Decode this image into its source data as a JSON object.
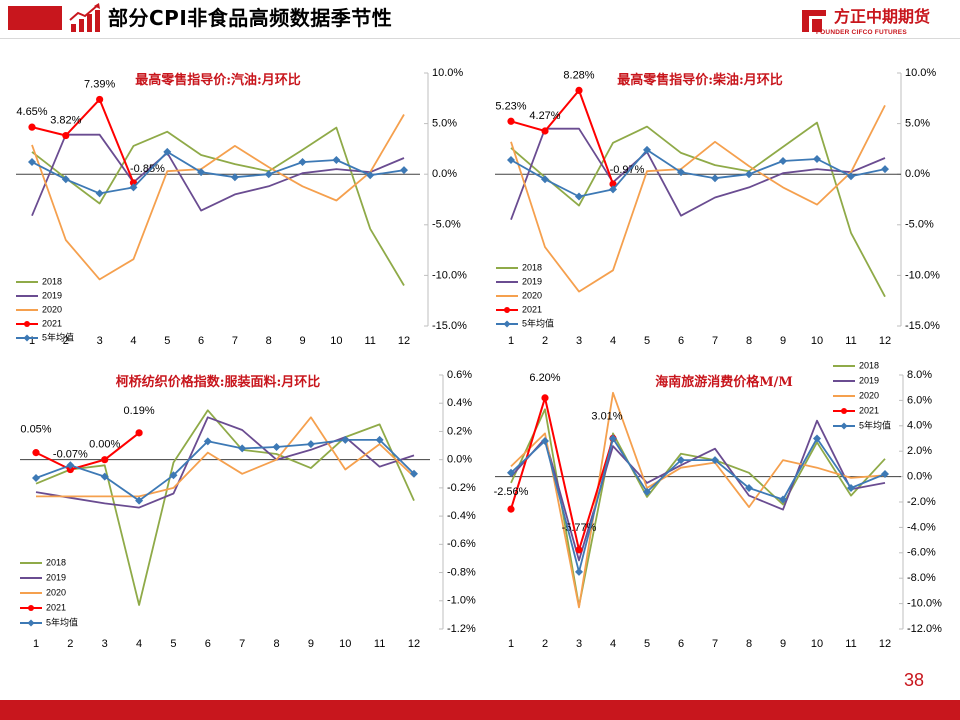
{
  "header": {
    "title": "部分CPI非食品高频数据季节性",
    "logo_cn": "方正中期期货",
    "logo_en": "FOUNDER CIFCO FUTURES",
    "accent_color": "#c8161d"
  },
  "footer": {
    "page_number": "38"
  },
  "series_colors": {
    "2018": "#8faa48",
    "2019": "#6a4c91",
    "2020": "#f5a04e",
    "2021": "#ff0000",
    "5年均值": "#3d79b5"
  },
  "chart_data": [
    {
      "type": "line",
      "title": "最高零售指导价:汽油:月环比",
      "x": [
        "1",
        "2",
        "3",
        "4",
        "5",
        "6",
        "7",
        "8",
        "9",
        "10",
        "11",
        "12"
      ],
      "y_ticks": [
        "10.0%",
        "5.0%",
        "0.0%",
        "-5.0%",
        "-10.0%",
        "-15.0%"
      ],
      "ylim": [
        -15,
        10
      ],
      "y_axis_side": "right",
      "legend_position": "bottom-left",
      "series": [
        {
          "name": "2018",
          "values": [
            2.2,
            -0.4,
            -2.9,
            2.8,
            4.2,
            1.9,
            1.0,
            0.3,
            2.4,
            4.6,
            -5.4,
            -11.0
          ]
        },
        {
          "name": "2019",
          "values": [
            -4.1,
            3.9,
            3.9,
            -0.8,
            2.1,
            -3.6,
            -2.0,
            -1.2,
            0.1,
            0.5,
            0.2,
            1.6
          ]
        },
        {
          "name": "2020",
          "values": [
            2.9,
            -6.5,
            -10.4,
            -8.4,
            0.3,
            0.5,
            2.8,
            0.7,
            -1.2,
            -2.6,
            0.2,
            5.9
          ]
        },
        {
          "name": "2021",
          "values": [
            4.65,
            3.82,
            7.39,
            -0.85,
            null,
            null,
            null,
            null,
            null,
            null,
            null,
            null
          ],
          "labels": [
            "4.65%",
            "3.82%",
            "7.39%",
            "-0.85%"
          ]
        },
        {
          "name": "5年均值",
          "values": [
            1.2,
            -0.5,
            -1.9,
            -1.3,
            2.2,
            0.2,
            -0.3,
            0.0,
            1.2,
            1.4,
            -0.1,
            0.4
          ]
        }
      ]
    },
    {
      "type": "line",
      "title": "最高零售指导价:柴油:月环比",
      "x": [
        "1",
        "2",
        "3",
        "4",
        "5",
        "6",
        "7",
        "8",
        "9",
        "10",
        "11",
        "12"
      ],
      "y_ticks": [
        "10.0%",
        "5.0%",
        "0.0%",
        "-5.0%",
        "-10.0%",
        "-15.0%"
      ],
      "ylim": [
        -15,
        10
      ],
      "y_axis_side": "right",
      "legend_position": "bottom-left",
      "series": [
        {
          "name": "2018",
          "values": [
            2.6,
            -0.3,
            -3.1,
            3.1,
            4.7,
            2.1,
            0.9,
            0.3,
            2.7,
            5.1,
            -5.8,
            -12.1
          ]
        },
        {
          "name": "2019",
          "values": [
            -4.5,
            4.5,
            4.5,
            -0.8,
            2.2,
            -4.1,
            -2.3,
            -1.3,
            0.1,
            0.5,
            0.2,
            1.6
          ]
        },
        {
          "name": "2020",
          "values": [
            3.2,
            -7.2,
            -11.6,
            -9.5,
            0.3,
            0.5,
            3.2,
            0.8,
            -1.3,
            -3.0,
            0.2,
            6.8
          ]
        },
        {
          "name": "2021",
          "values": [
            5.23,
            4.27,
            8.28,
            -0.97,
            null,
            null,
            null,
            null,
            null,
            null,
            null,
            null
          ],
          "labels": [
            "5.23%",
            "4.27%",
            "8.28%",
            "-0.97%"
          ]
        },
        {
          "name": "5年均值",
          "values": [
            1.4,
            -0.5,
            -2.2,
            -1.5,
            2.4,
            0.2,
            -0.4,
            0.0,
            1.3,
            1.5,
            -0.2,
            0.5
          ]
        }
      ]
    },
    {
      "type": "line",
      "title": "柯桥纺织价格指数:服装面料:月环比",
      "x": [
        "1",
        "2",
        "3",
        "4",
        "5",
        "6",
        "7",
        "8",
        "9",
        "10",
        "11",
        "12"
      ],
      "y_ticks": [
        "0.6%",
        "0.4%",
        "0.2%",
        "0.0%",
        "-0.2%",
        "-0.4%",
        "-0.6%",
        "-0.8%",
        "-1.0%",
        "-1.2%"
      ],
      "ylim": [
        -1.2,
        0.6
      ],
      "y_axis_side": "right",
      "legend_position": "bottom-left",
      "series": [
        {
          "name": "2018",
          "values": [
            -0.17,
            -0.07,
            -0.04,
            -1.03,
            -0.02,
            0.35,
            0.07,
            0.04,
            -0.06,
            0.16,
            0.25,
            -0.29
          ]
        },
        {
          "name": "2019",
          "values": [
            -0.23,
            -0.27,
            -0.31,
            -0.34,
            -0.24,
            0.3,
            0.21,
            0.0,
            0.07,
            0.16,
            -0.05,
            0.03
          ]
        },
        {
          "name": "2020",
          "values": [
            -0.26,
            -0.26,
            -0.26,
            -0.26,
            -0.2,
            0.05,
            -0.1,
            0.0,
            0.3,
            -0.07,
            0.11,
            -0.12
          ]
        },
        {
          "name": "2021",
          "values": [
            0.05,
            -0.07,
            0.0,
            0.19,
            null,
            null,
            null,
            null,
            null,
            null,
            null,
            null
          ],
          "labels": [
            "0.05%",
            "-0.07%",
            "0.00%",
            "0.19%"
          ]
        },
        {
          "name": "5年均值",
          "values": [
            -0.13,
            -0.04,
            -0.12,
            -0.29,
            -0.11,
            0.13,
            0.08,
            0.09,
            0.11,
            0.14,
            0.14,
            -0.1
          ]
        }
      ]
    },
    {
      "type": "line",
      "title": "海南旅游消费价格M/M",
      "x": [
        "1",
        "2",
        "3",
        "4",
        "5",
        "6",
        "7",
        "8",
        "9",
        "10",
        "11",
        "12"
      ],
      "y_ticks": [
        "8.0%",
        "6.0%",
        "4.0%",
        "2.0%",
        "0.0%",
        "-2.0%",
        "-4.0%",
        "-6.0%",
        "-8.0%",
        "-10.0%",
        "-12.0%"
      ],
      "ylim": [
        -12,
        8
      ],
      "y_axis_side": "right",
      "legend_position": "top-right",
      "series": [
        {
          "name": "2018",
          "values": [
            -0.5,
            5.3,
            -10.2,
            3.4,
            -1.6,
            1.8,
            1.3,
            0.3,
            -2.2,
            2.7,
            -1.5,
            1.4
          ]
        },
        {
          "name": "2019",
          "values": [
            0.0,
            3.0,
            -6.6,
            2.4,
            -0.5,
            0.9,
            2.2,
            -1.5,
            -2.6,
            4.4,
            -1.0,
            -0.5
          ]
        },
        {
          "name": "2020",
          "values": [
            0.8,
            3.4,
            -10.3,
            6.6,
            -0.9,
            0.7,
            1.1,
            -2.4,
            1.3,
            0.7,
            -0.1,
            0.1
          ]
        },
        {
          "name": "2021",
          "values": [
            -2.56,
            6.2,
            -5.77,
            3.01,
            null,
            null,
            null,
            null,
            null,
            null,
            null,
            null
          ],
          "labels": [
            "-2.56%",
            "6.20%",
            "-5.77%",
            "3.01%"
          ]
        },
        {
          "name": "5年均值",
          "values": [
            0.3,
            2.8,
            -7.5,
            3.0,
            -1.2,
            1.3,
            1.3,
            -0.9,
            -1.8,
            3.0,
            -0.9,
            0.2
          ]
        }
      ]
    }
  ]
}
